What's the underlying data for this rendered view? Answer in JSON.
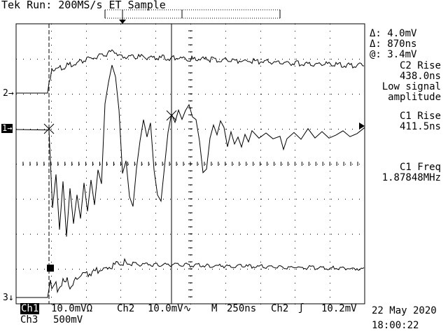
{
  "header": {
    "status": "Tek Run: 200MS/s ET Sample"
  },
  "readouts": {
    "delta_v": "Δ: 4.0mV",
    "delta_t": "Δ: 870ns",
    "at_v": "@: 3.4mV",
    "c2_rise_label": "C2 Rise",
    "c2_rise_value": "438.0ns",
    "low_signal_line1": "Low signal",
    "low_signal_line2": "amplitude",
    "c1_rise_label": "C1 Rise",
    "c1_rise_value": "411.5ns",
    "c1_freq_label": "C1 Freq",
    "c1_freq_value": "1.87848MHz"
  },
  "channel_markers": {
    "ch1": "1→",
    "ch2": "2→",
    "ch3": "3↓"
  },
  "footer": {
    "ch1_label": "Ch1",
    "ch1_scale": "10.0mVΩ",
    "ch2_label": "Ch2",
    "ch2_scale": "10.0mV∿",
    "timebase_label": "M",
    "timebase_value": "250ns",
    "trigger_source": "Ch2",
    "trigger_symbol": "ʃ",
    "trigger_level": "10.2mV",
    "ch3_label": "Ch3",
    "ch3_scale": "500mV",
    "date": "22 May 2020",
    "time": "18:00:22"
  }
}
